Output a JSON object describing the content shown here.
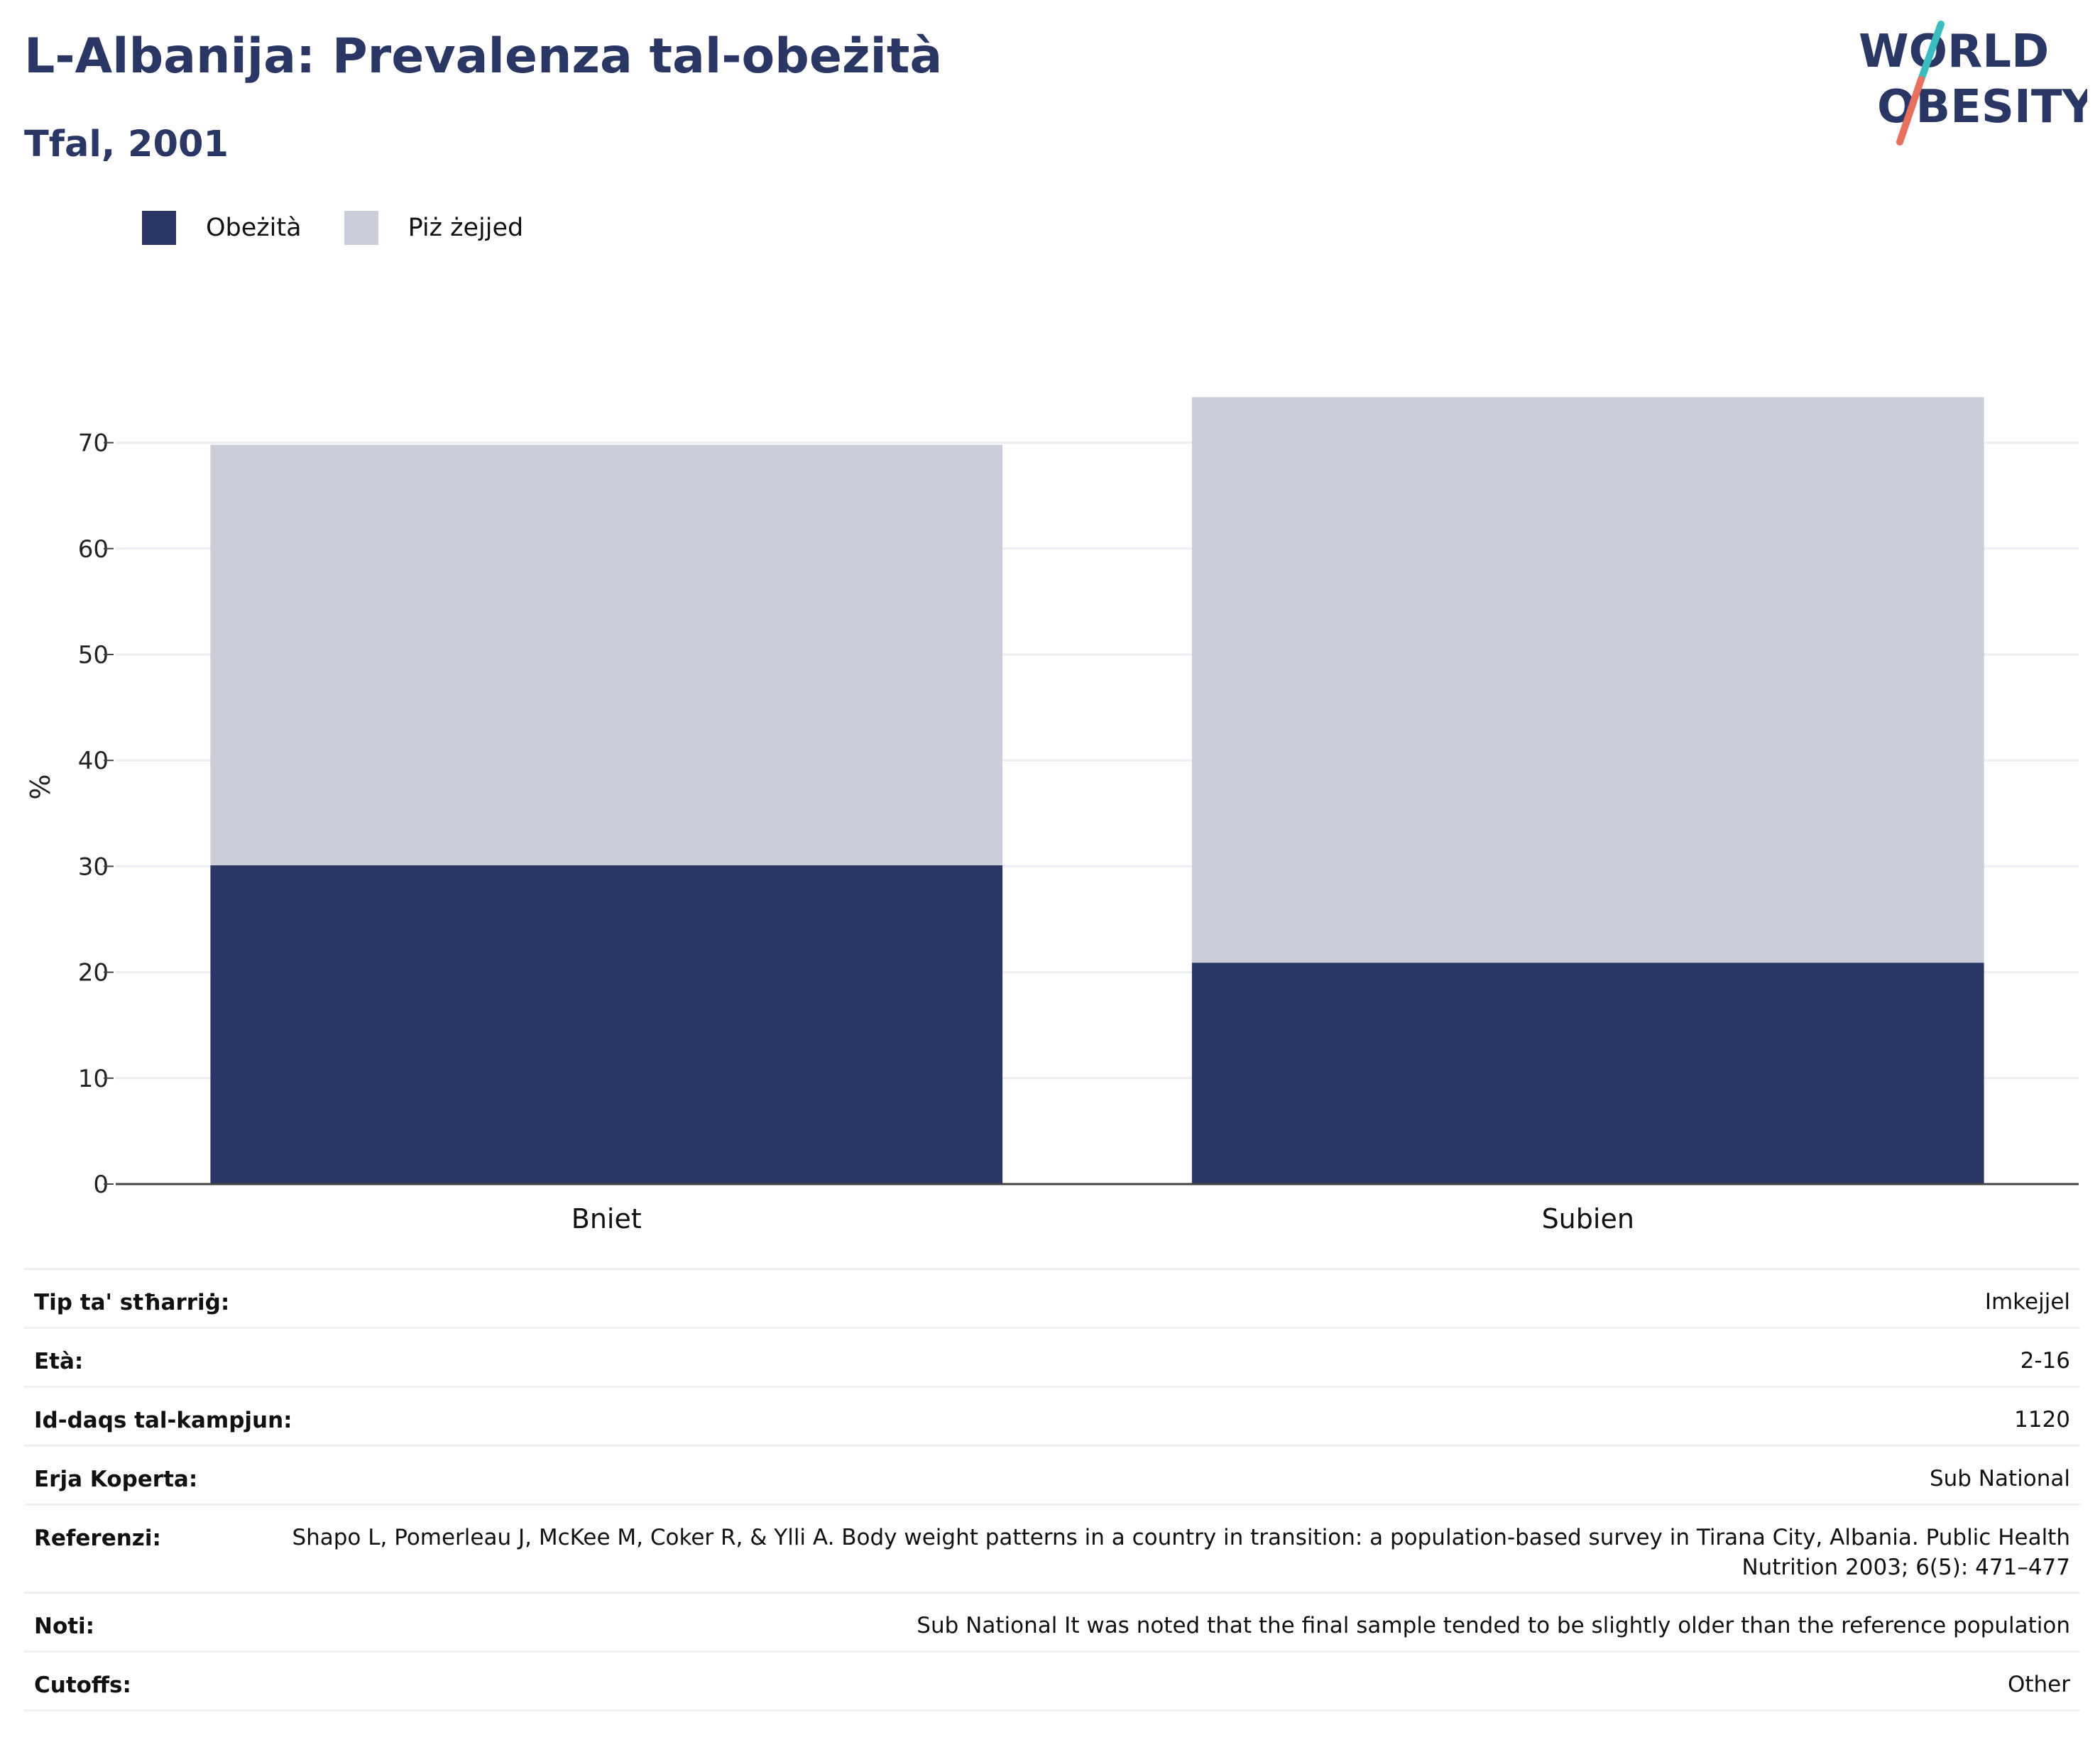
{
  "header": {
    "title": "L-Albanija: Prevalenza tal-obeżità",
    "subtitle": "Tfal, 2001"
  },
  "logo": {
    "line1": "WORLD",
    "line2": "OBESITY"
  },
  "colors": {
    "obesity": "#2a3663",
    "overweight": "#cbcdd8",
    "title": "#2a3663"
  },
  "chart_data": {
    "type": "bar",
    "stacked": true,
    "categories": [
      "Bniet",
      "Subien"
    ],
    "series": [
      {
        "name": "Obeżità",
        "values": [
          30.1,
          20.9
        ]
      },
      {
        "name": "Piż żejjed",
        "values": [
          39.7,
          53.4
        ]
      }
    ],
    "ylabel": "%",
    "xlabel": "",
    "ylim": [
      0,
      75
    ],
    "yticks": [
      0,
      10,
      20,
      30,
      40,
      50,
      60,
      70
    ],
    "grid": true,
    "legend_position": "top-left"
  },
  "details": [
    {
      "label": "Tip ta' stħarriġ:",
      "value": "Imkejjel"
    },
    {
      "label": "Età:",
      "value": "2-16"
    },
    {
      "label": "Id-daqs tal-kampjun:",
      "value": "1120"
    },
    {
      "label": "Erja Koperta:",
      "value": "Sub National"
    },
    {
      "label": "Referenzi:",
      "value": "Shapo L, Pomerleau J, McKee M, Coker R, & Ylli A. Body weight patterns in a country in transition: a population-based survey in Tirana City, Albania. Public Health Nutrition 2003; 6(5): 471–477"
    },
    {
      "label": "Noti:",
      "value": "Sub National It was noted that the final sample tended to be slightly older than the reference population"
    },
    {
      "label": "Cutoffs:",
      "value": "Other"
    }
  ]
}
